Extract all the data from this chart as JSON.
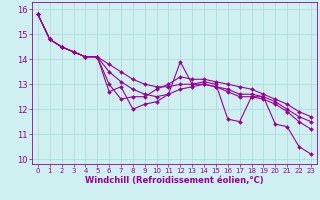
{
  "xlabel": "Windchill (Refroidissement éolien,°C)",
  "bg_color": "#cff0f0",
  "line_color": "#990099",
  "marker": "D",
  "markersize": 2.0,
  "linewidth": 0.8,
  "xlim": [
    -0.5,
    23.5
  ],
  "ylim": [
    9.8,
    16.3
  ],
  "yticks": [
    10,
    11,
    12,
    13,
    14,
    15,
    16
  ],
  "xticks": [
    0,
    1,
    2,
    3,
    4,
    5,
    6,
    7,
    8,
    9,
    10,
    11,
    12,
    13,
    14,
    15,
    16,
    17,
    18,
    19,
    20,
    21,
    22,
    23
  ],
  "series": [
    [
      15.8,
      14.8,
      14.5,
      14.3,
      14.1,
      14.1,
      12.7,
      12.9,
      12.0,
      12.2,
      12.3,
      12.6,
      13.9,
      13.0,
      13.1,
      13.0,
      11.6,
      11.5,
      12.5,
      12.5,
      11.4,
      11.3,
      10.5,
      10.2
    ],
    [
      15.8,
      14.8,
      14.5,
      14.3,
      14.1,
      14.1,
      13.0,
      12.4,
      12.5,
      12.5,
      12.8,
      13.0,
      13.3,
      13.2,
      13.2,
      13.1,
      13.0,
      12.9,
      12.8,
      12.6,
      12.4,
      12.2,
      11.9,
      11.7
    ],
    [
      15.8,
      14.8,
      14.5,
      14.3,
      14.1,
      14.1,
      13.5,
      13.1,
      12.8,
      12.6,
      12.5,
      12.6,
      12.8,
      12.9,
      13.0,
      12.9,
      12.8,
      12.6,
      12.6,
      12.5,
      12.3,
      12.0,
      11.7,
      11.5
    ],
    [
      15.8,
      14.8,
      14.5,
      14.3,
      14.1,
      14.1,
      13.8,
      13.5,
      13.2,
      13.0,
      12.9,
      12.9,
      13.0,
      13.0,
      13.0,
      12.9,
      12.7,
      12.5,
      12.5,
      12.4,
      12.2,
      11.9,
      11.5,
      11.2
    ]
  ],
  "xlabel_fontsize": 6,
  "xtick_fontsize": 5,
  "ytick_fontsize": 6,
  "grid_color": "#a8d8d8",
  "grid_linewidth": 0.5,
  "spine_linewidth": 0.6
}
